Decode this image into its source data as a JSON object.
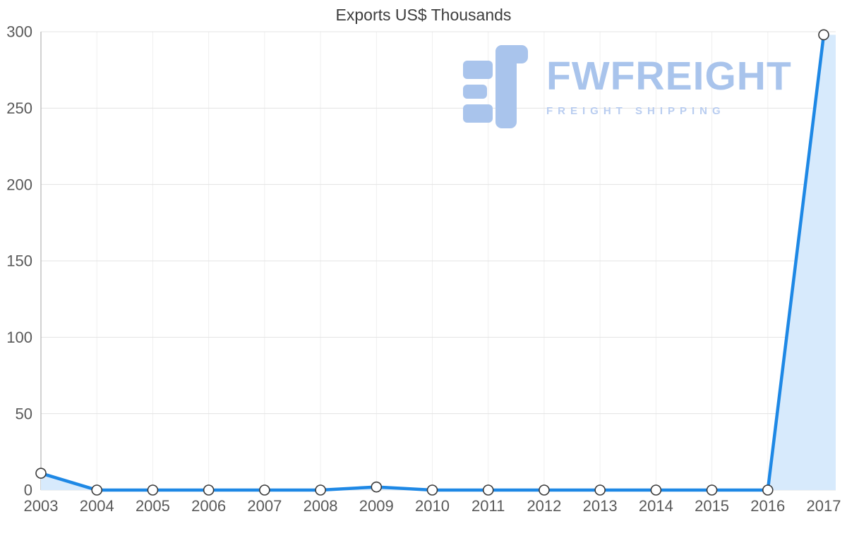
{
  "chart_data": {
    "type": "area",
    "title": "Exports US$ Thousands",
    "categories": [
      "2003",
      "2004",
      "2005",
      "2006",
      "2007",
      "2008",
      "2009",
      "2010",
      "2011",
      "2012",
      "2013",
      "2014",
      "2015",
      "2016",
      "2017"
    ],
    "series": [
      {
        "name": "Exports US$ Thousands",
        "values": [
          11,
          0,
          0,
          0,
          0,
          0,
          2,
          0,
          0,
          0,
          0,
          0,
          0,
          0,
          298
        ]
      }
    ],
    "xlabel": "",
    "ylabel": "",
    "ylim": [
      0,
      300
    ],
    "yticks": [
      0,
      50,
      100,
      150,
      200,
      250,
      300
    ],
    "grid": "on",
    "legend": "none",
    "line_color": "#1e88e5",
    "fill_color": "#d7eafc",
    "marker": {
      "fill": "#ffffff",
      "stroke": "#3a3a3a"
    },
    "colors": {
      "h_grid": "#e3e3e3",
      "v_grid": "#efefef",
      "axis": "#b5b5b5",
      "tick_label": "#595959",
      "title": "#3d3d3d"
    }
  },
  "watermark": {
    "brand": "FWFREIGHT",
    "tagline": "FREIGHT SHIPPING",
    "color": "#a9c4ec"
  }
}
